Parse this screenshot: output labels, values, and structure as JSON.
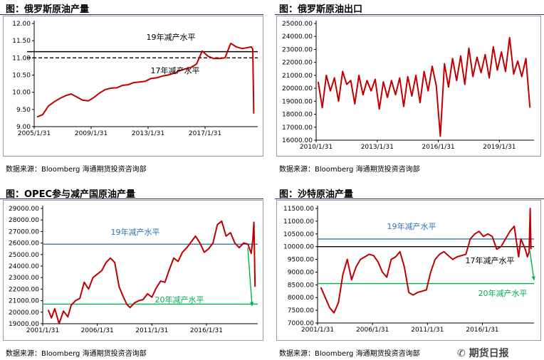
{
  "panels": [
    {
      "id": "p1",
      "title": "图：俄罗斯原油产量",
      "source": "数据来源：Bloomberg   海通期货投资咨询部"
    },
    {
      "id": "p2",
      "title": "图：俄罗斯原油出口",
      "source": "数据来源：Bloomberg   海通期货投资咨询部"
    },
    {
      "id": "p3",
      "title": "图：OPEC参与减产国原油产量",
      "source": "数据来源：Bloomberg   海通期货投资咨询部"
    },
    {
      "id": "p4",
      "title": "图：沙特原油产量",
      "source": "数据来源：Bloomberg   海通期货投资咨询部"
    }
  ],
  "watermark": "期货日报",
  "colors": {
    "series": "#c00000",
    "ref19_p1": "#000000",
    "ref17_p1": "#000000",
    "ref19_blue": "#2e75b6",
    "ref20_green": "#00b050",
    "black_ref": "#000000",
    "title_rule": "#1f3864"
  },
  "chart_data": [
    {
      "type": "line",
      "panel": "p1",
      "ylim": [
        9.0,
        12.0
      ],
      "yticks": [
        "9.00",
        "9.50",
        "10.00",
        "10.50",
        "11.00",
        "11.50",
        "12.00"
      ],
      "xlim": [
        2005.0,
        2020.7
      ],
      "xticks": [
        {
          "v": 2005.0,
          "label": "2005/1/31"
        },
        {
          "v": 2009.0,
          "label": "2009/1/31"
        },
        {
          "v": 2013.0,
          "label": "2013/1/31"
        },
        {
          "v": 2017.0,
          "label": "2017/1/31"
        }
      ],
      "series": [
        {
          "x": [
            2005.2,
            2005.6,
            2006.0,
            2006.4,
            2006.8,
            2007.2,
            2007.6,
            2008.0,
            2008.4,
            2008.8,
            2009.2,
            2009.6,
            2010.0,
            2010.4,
            2010.8,
            2011.2,
            2011.6,
            2012.0,
            2012.4,
            2012.8,
            2013.2,
            2013.6,
            2014.0,
            2014.4,
            2014.8,
            2015.2,
            2015.6,
            2016.0,
            2016.4,
            2016.8,
            2017.2,
            2017.6,
            2018.0,
            2018.4,
            2018.8,
            2019.2,
            2019.6,
            2020.0,
            2020.25,
            2020.35,
            2020.42
          ],
          "y": [
            9.28,
            9.35,
            9.6,
            9.72,
            9.82,
            9.9,
            9.95,
            9.86,
            9.77,
            9.75,
            9.85,
            9.98,
            10.08,
            10.12,
            10.13,
            10.2,
            10.22,
            10.28,
            10.3,
            10.32,
            10.4,
            10.42,
            10.47,
            10.5,
            10.55,
            10.62,
            10.68,
            10.72,
            10.82,
            11.2,
            11.05,
            10.98,
            10.98,
            11.0,
            11.42,
            11.32,
            11.27,
            11.3,
            11.32,
            11.25,
            9.38
          ]
        }
      ],
      "refs": [
        {
          "label": "19年减产水平",
          "y": 11.18,
          "style": "solid"
        },
        {
          "label": "17年减产水平",
          "y": 11.0,
          "style": "dashed"
        }
      ]
    },
    {
      "type": "line",
      "panel": "p2",
      "ylim": [
        16000,
        25000
      ],
      "yticks": [
        "16000.00",
        "17000.00",
        "18000.00",
        "19000.00",
        "20000.00",
        "21000.00",
        "22000.00",
        "23000.00",
        "24000.00",
        "25000.00"
      ],
      "xlim": [
        2010.0,
        2020.7
      ],
      "xticks": [
        {
          "v": 2010.0,
          "label": "2010/1/31"
        },
        {
          "v": 2013.0,
          "label": "2013/1/31"
        },
        {
          "v": 2016.0,
          "label": "2016/1/31"
        },
        {
          "v": 2019.0,
          "label": "2019/1/31"
        }
      ],
      "series": [
        {
          "x": [
            2010.1,
            2010.3,
            2010.5,
            2010.7,
            2010.9,
            2011.1,
            2011.3,
            2011.5,
            2011.7,
            2011.9,
            2012.1,
            2012.3,
            2012.5,
            2012.7,
            2012.9,
            2013.1,
            2013.3,
            2013.5,
            2013.7,
            2013.9,
            2014.1,
            2014.3,
            2014.5,
            2014.7,
            2014.9,
            2015.1,
            2015.3,
            2015.5,
            2015.7,
            2015.9,
            2016.1,
            2016.3,
            2016.5,
            2016.7,
            2016.9,
            2017.1,
            2017.3,
            2017.5,
            2017.7,
            2017.9,
            2018.1,
            2018.3,
            2018.5,
            2018.7,
            2018.9,
            2019.1,
            2019.3,
            2019.5,
            2019.7,
            2019.9,
            2020.1,
            2020.3,
            2020.5
          ],
          "y": [
            20500,
            18500,
            21000,
            19800,
            20800,
            19000,
            21300,
            20300,
            20600,
            18800,
            21000,
            19500,
            20600,
            19800,
            20700,
            18400,
            20500,
            19300,
            20600,
            19500,
            20800,
            18600,
            20900,
            19400,
            21000,
            18900,
            21300,
            19800,
            21700,
            20200,
            16300,
            21900,
            20100,
            22300,
            20600,
            22500,
            20300,
            23100,
            20900,
            22400,
            21200,
            22600,
            20800,
            23200,
            21400,
            22800,
            21300,
            23900,
            21100,
            22100,
            20900,
            22300,
            18500
          ]
        }
      ]
    },
    {
      "type": "line",
      "panel": "p3",
      "ylim": [
        19000,
        29000
      ],
      "yticks": [
        "19000.00",
        "20000.00",
        "21000.00",
        "22000.00",
        "23000.00",
        "24000.00",
        "25000.00",
        "26000.00",
        "27000.00",
        "28000.00",
        "29000.00"
      ],
      "xlim": [
        2001.0,
        2020.7
      ],
      "xticks": [
        {
          "v": 2001.0,
          "label": "2001/1/31"
        },
        {
          "v": 2006.0,
          "label": "2006/1/31"
        },
        {
          "v": 2011.0,
          "label": "2011/1/31"
        },
        {
          "v": 2016.0,
          "label": "2016/1/31"
        }
      ],
      "series": [
        {
          "x": [
            2001.5,
            2001.8,
            2002.1,
            2002.5,
            2002.9,
            2003.3,
            2003.6,
            2004.0,
            2004.4,
            2004.8,
            2005.2,
            2005.6,
            2006.0,
            2006.4,
            2006.8,
            2007.2,
            2007.6,
            2008.0,
            2008.4,
            2008.7,
            2009.0,
            2009.4,
            2009.8,
            2010.2,
            2010.6,
            2011.0,
            2011.4,
            2011.8,
            2012.2,
            2012.6,
            2013.0,
            2013.4,
            2013.8,
            2014.2,
            2014.6,
            2015.0,
            2015.4,
            2015.8,
            2016.2,
            2016.6,
            2017.0,
            2017.4,
            2017.8,
            2018.2,
            2018.6,
            2019.0,
            2019.4,
            2019.8,
            2020.1,
            2020.25,
            2020.35,
            2020.45
          ],
          "y": [
            20200,
            19500,
            20300,
            19000,
            20100,
            19600,
            20600,
            21000,
            21200,
            22600,
            22000,
            23000,
            23300,
            23600,
            24300,
            24700,
            24300,
            22200,
            21300,
            20700,
            20400,
            20800,
            21000,
            21100,
            21600,
            21300,
            22100,
            22700,
            22600,
            23700,
            24700,
            24400,
            25200,
            25600,
            26100,
            26600,
            26000,
            25200,
            25500,
            26000,
            27600,
            27900,
            26600,
            26900,
            26000,
            25600,
            26000,
            25900,
            25100,
            26300,
            27800,
            22200
          ]
        }
      ],
      "refs": [
        {
          "label": "19年减产水平",
          "y": 25900,
          "style": "blue"
        },
        {
          "label": "20年减产水平",
          "y": 20700,
          "style": "green"
        }
      ]
    },
    {
      "type": "line",
      "panel": "p4",
      "ylim": [
        7000,
        11500
      ],
      "yticks": [
        "7000.00",
        "7500.00",
        "8000.00",
        "8500.00",
        "9000.00",
        "9500.00",
        "10000.00",
        "10500.00",
        "11000.00",
        "11500.00"
      ],
      "xlim": [
        2001.0,
        2020.7
      ],
      "xticks": [
        {
          "v": 2001.0,
          "label": "2001/1/31"
        },
        {
          "v": 2006.0,
          "label": "2006/1/31"
        },
        {
          "v": 2011.0,
          "label": "2011/1/31"
        },
        {
          "v": 2016.0,
          "label": "2016/1/31"
        }
      ],
      "series": [
        {
          "x": [
            2001.3,
            2001.7,
            2002.1,
            2002.5,
            2002.9,
            2003.3,
            2003.7,
            2004.1,
            2004.5,
            2004.9,
            2005.3,
            2005.7,
            2006.1,
            2006.5,
            2006.9,
            2007.3,
            2007.7,
            2008.1,
            2008.5,
            2008.9,
            2009.3,
            2009.7,
            2010.1,
            2010.5,
            2010.9,
            2011.3,
            2011.7,
            2012.1,
            2012.5,
            2012.9,
            2013.3,
            2013.7,
            2014.1,
            2014.5,
            2014.9,
            2015.3,
            2015.7,
            2016.1,
            2016.5,
            2016.9,
            2017.3,
            2017.7,
            2018.1,
            2018.5,
            2018.9,
            2019.3,
            2019.5,
            2019.7,
            2019.9,
            2020.1,
            2020.25,
            2020.35,
            2020.42
          ],
          "y": [
            8400,
            8000,
            7600,
            7400,
            7800,
            8900,
            9500,
            8700,
            9200,
            9500,
            9600,
            9700,
            9650,
            9400,
            9000,
            8800,
            9500,
            9600,
            9800,
            9200,
            8200,
            8100,
            8200,
            8250,
            8300,
            9000,
            9500,
            9700,
            9800,
            9650,
            9500,
            9600,
            9650,
            9700,
            10300,
            10500,
            10600,
            10400,
            10500,
            10400,
            9900,
            10000,
            10300,
            10600,
            10800,
            9600,
            10300,
            10100,
            9900,
            9600,
            9800,
            11500,
            9900
          ]
        }
      ],
      "refs": [
        {
          "label": "19年减产水平",
          "y": 10300,
          "style": "blue"
        },
        {
          "label": "",
          "y": 10000,
          "style": "black"
        },
        {
          "label": "17年减产水平",
          "y": 9680,
          "style": "none"
        },
        {
          "label": "20年减产水平",
          "y": 8550,
          "style": "green"
        }
      ]
    }
  ]
}
